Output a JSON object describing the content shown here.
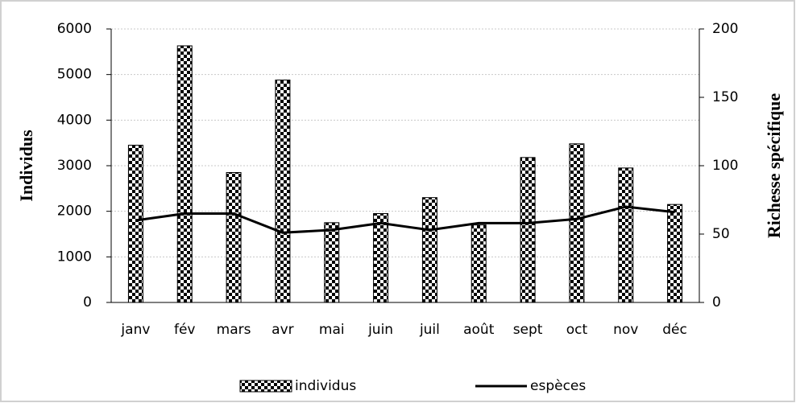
{
  "chart_data": {
    "type": "bar",
    "y_label": "Individus",
    "y2_label": "Richesse spécifique",
    "categories": [
      "janv",
      "fév",
      "mars",
      "avr",
      "mai",
      "juin",
      "juil",
      "août",
      "sept",
      "oct",
      "nov",
      "déc"
    ],
    "series": [
      {
        "name": "individus",
        "type": "bar",
        "color": "#000000",
        "values": [
          3450,
          5630,
          2850,
          4880,
          1750,
          1950,
          2300,
          1700,
          3180,
          3480,
          2950,
          2150
        ]
      },
      {
        "name": "espèces",
        "type": "line",
        "color": "#000000",
        "axis": "y2",
        "values": [
          60,
          65,
          65,
          51,
          53,
          58,
          53,
          58,
          58,
          61,
          70,
          66
        ]
      }
    ],
    "ylim": [
      0,
      6000
    ],
    "yticks": [
      0,
      1000,
      2000,
      3000,
      4000,
      5000,
      6000
    ],
    "y2lim": [
      0,
      200
    ],
    "y2ticks": [
      0,
      50,
      100,
      150,
      200
    ],
    "grid": true,
    "legend": "bottom"
  }
}
